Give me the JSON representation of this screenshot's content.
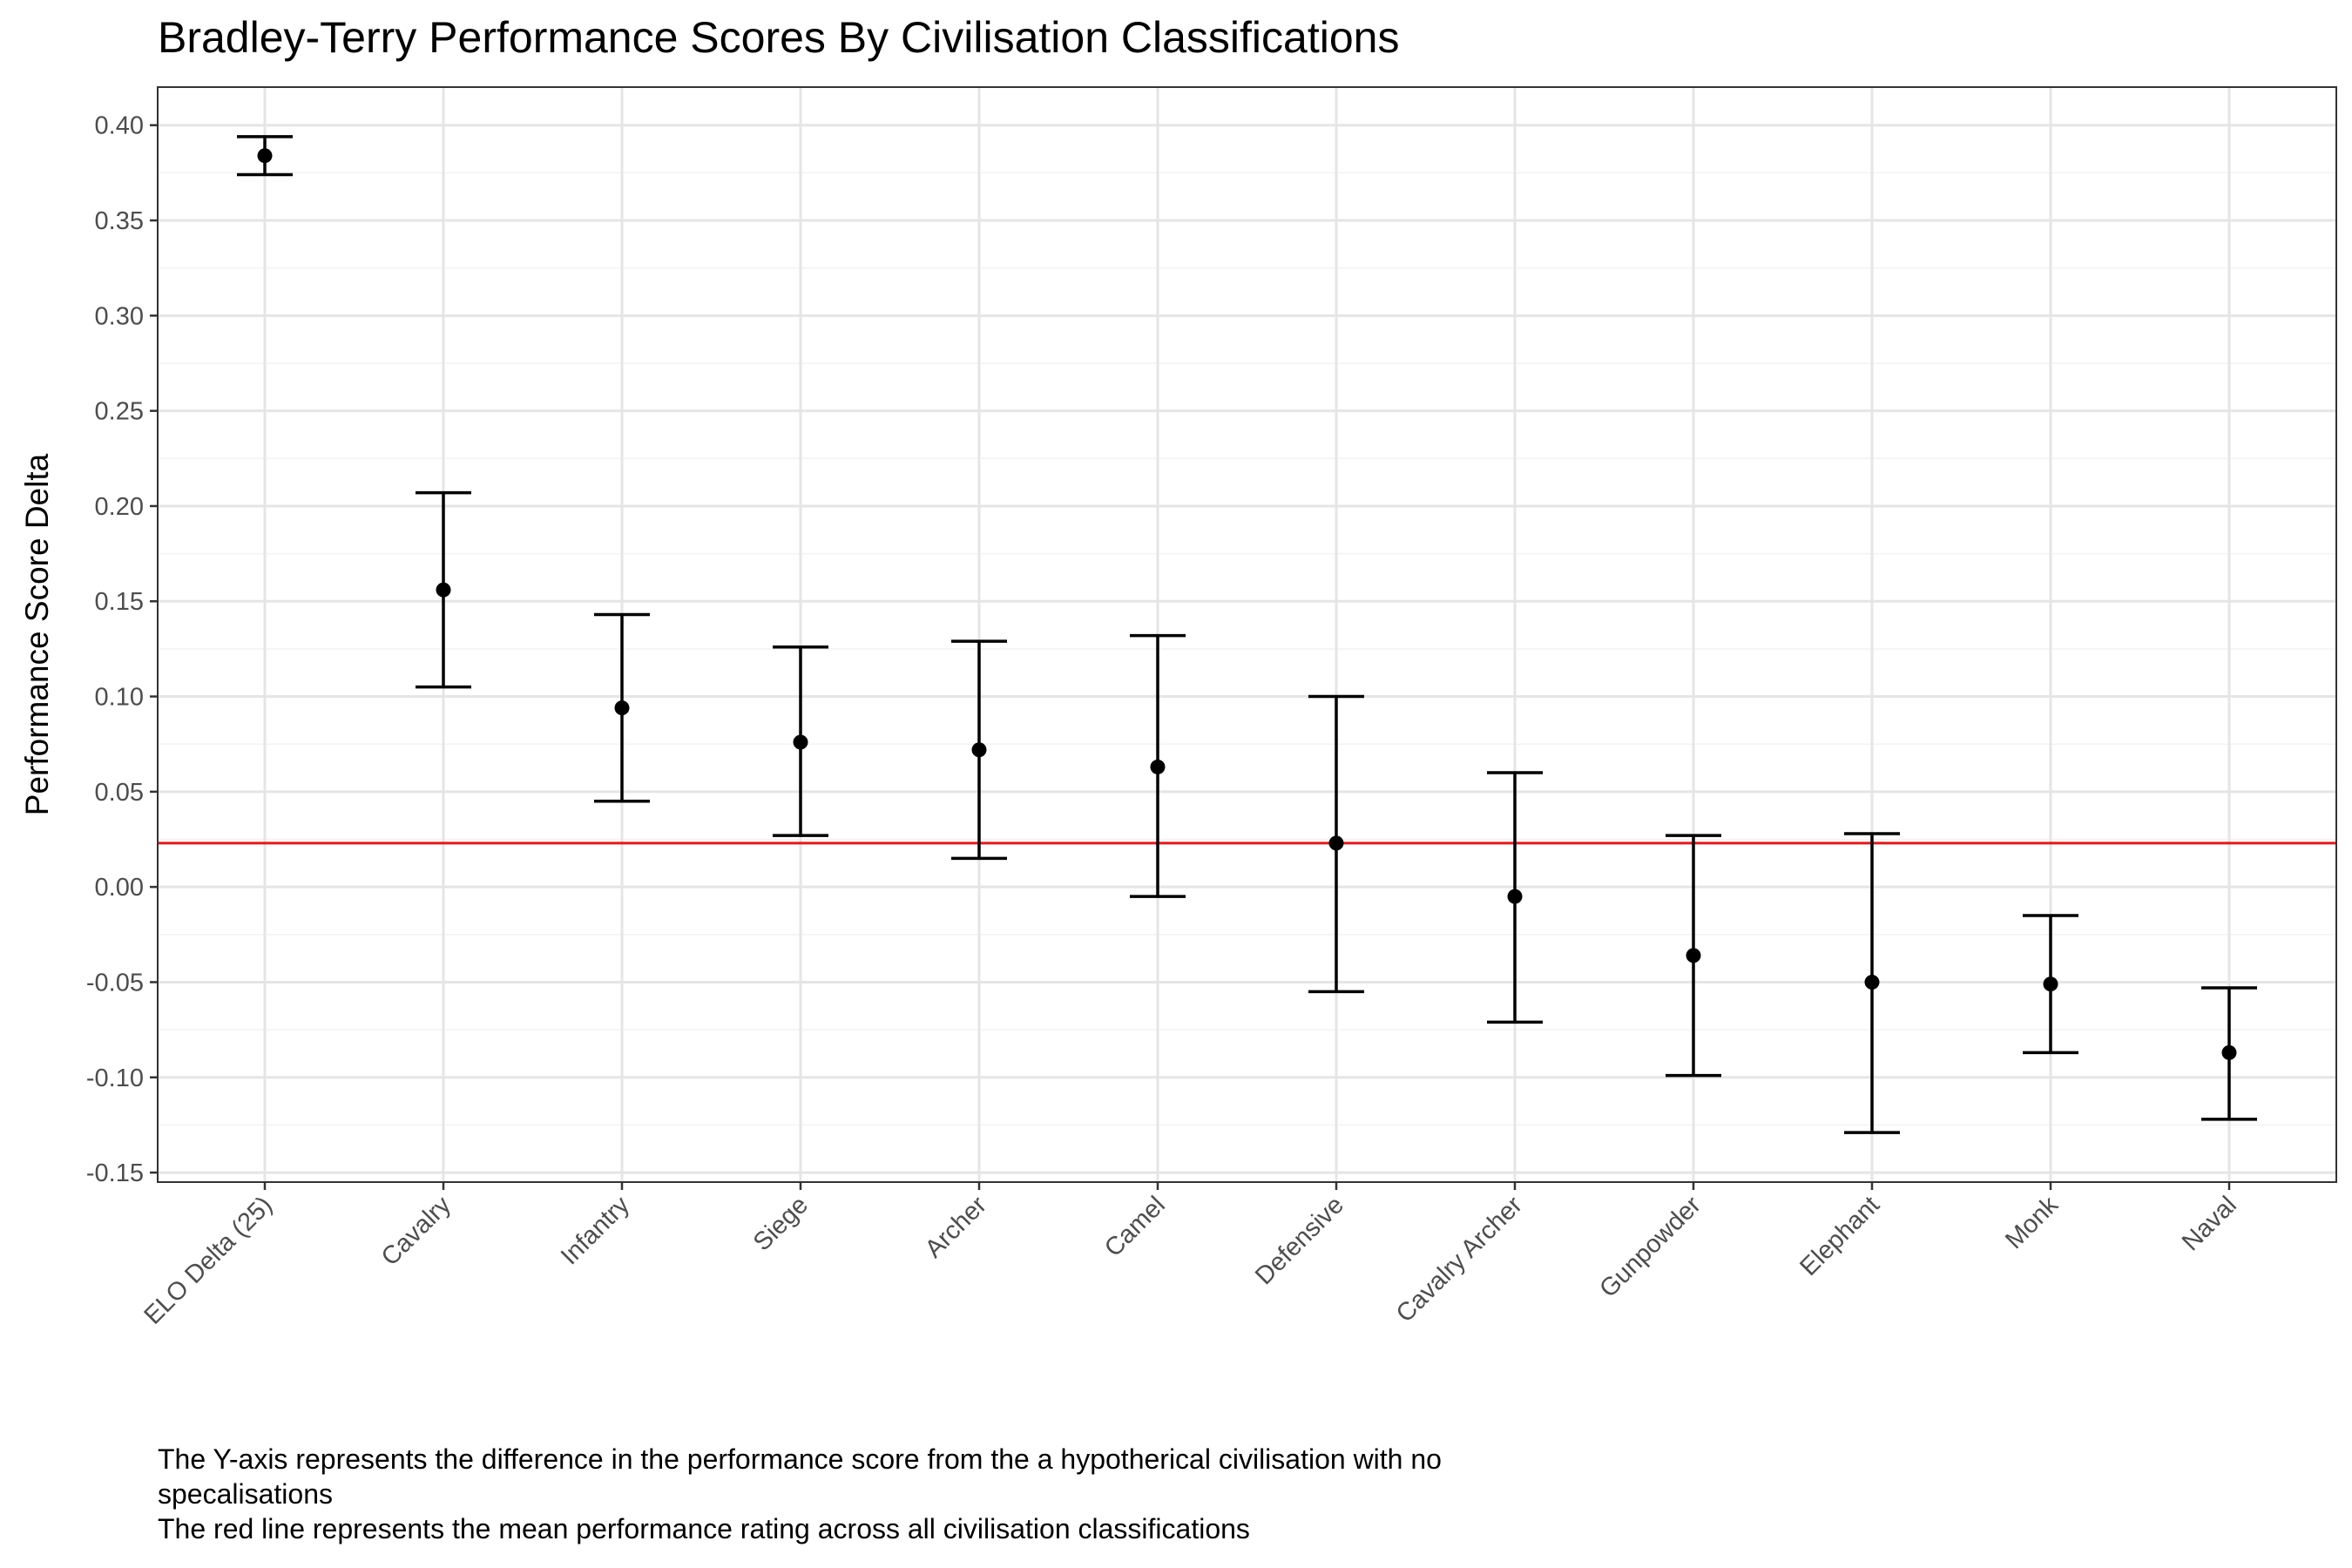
{
  "chart_data": {
    "type": "errorbar",
    "title": "Bradley-Terry Performance Scores By Civilisation Classifications",
    "ylabel": "Performance Score Delta",
    "xlabel": "",
    "ylim": [
      -0.155,
      0.42
    ],
    "yticks": [
      "0.40",
      "0.35",
      "0.30",
      "0.25",
      "0.20",
      "0.15",
      "0.10",
      "0.05",
      "0.00",
      "-0.05",
      "-0.10",
      "-0.15"
    ],
    "ytick_values": [
      0.4,
      0.35,
      0.3,
      0.25,
      0.2,
      0.15,
      0.1,
      0.05,
      0.0,
      -0.05,
      -0.1,
      -0.15
    ],
    "categories": [
      "ELO Delta (25)",
      "Cavalry",
      "Infantry",
      "Siege",
      "Archer",
      "Camel",
      "Defensive",
      "Cavalry Archer",
      "Gunpowder",
      "Elephant",
      "Monk",
      "Naval"
    ],
    "values": [
      0.384,
      0.156,
      0.094,
      0.076,
      0.072,
      0.063,
      0.023,
      -0.005,
      -0.036,
      -0.05,
      -0.051,
      -0.087
    ],
    "lower": [
      0.374,
      0.105,
      0.045,
      0.027,
      0.015,
      -0.005,
      -0.055,
      -0.071,
      -0.099,
      -0.129,
      -0.087,
      -0.122
    ],
    "upper": [
      0.394,
      0.207,
      0.143,
      0.126,
      0.129,
      0.132,
      0.1,
      0.06,
      0.027,
      0.028,
      -0.015,
      -0.053
    ],
    "mean_line": 0.023,
    "mean_line_color": "#e8161b",
    "point_color": "#000000",
    "grid": true
  },
  "caption": {
    "line1": "The Y-axis represents the difference in the performance score from the a hypotherical civilisation with no",
    "line2": "specalisations",
    "line3": "The red line represents the mean performance rating across all civilisation classifications"
  }
}
